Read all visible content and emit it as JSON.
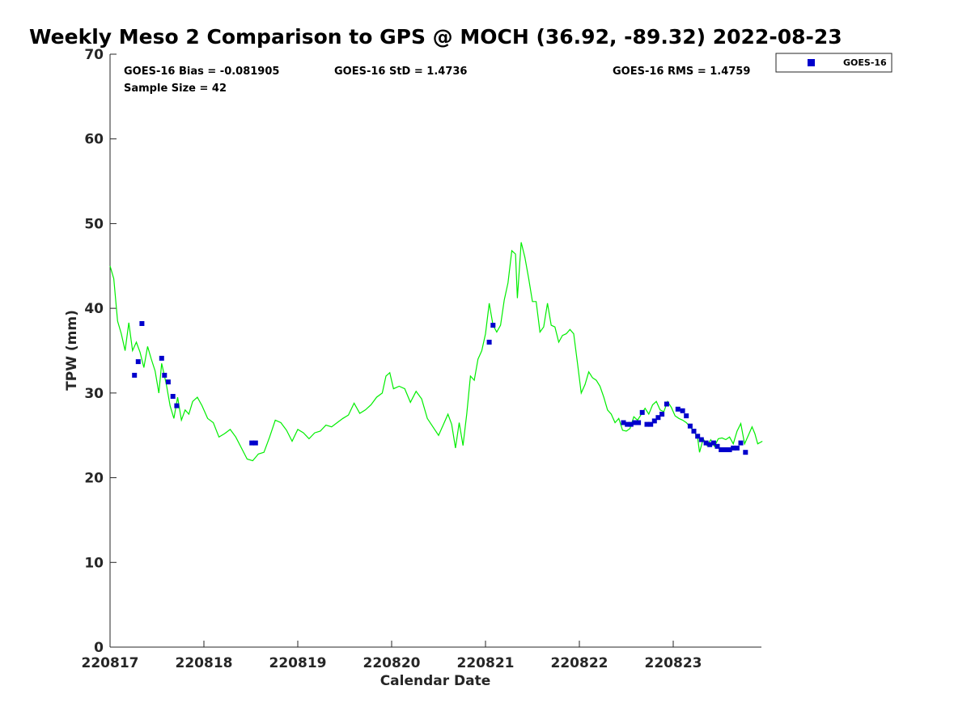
{
  "chart_data": {
    "type": "scatter",
    "title": "Weekly Meso 2 Comparison to GPS @ MOCH (36.92, -89.32) 2022-08-23",
    "xlabel": "Calendar Date",
    "ylabel": "TPW (mm)",
    "xlim": [
      0,
      6.95
    ],
    "ylim": [
      0,
      70
    ],
    "x_tick_labels": [
      "220817",
      "220818",
      "220819",
      "220820",
      "220821",
      "220822",
      "220823"
    ],
    "y_ticks": [
      0,
      10,
      20,
      30,
      40,
      50,
      60,
      70
    ],
    "grid": false,
    "legend_position": "top-right",
    "stats": {
      "bias": "GOES-16 Bias = -0.081905",
      "std": "GOES-16 StD = 1.4736",
      "rms": "GOES-16 RMS = 1.4759",
      "sample": "Sample Size = 42"
    },
    "series": [
      {
        "name": "GOES-16",
        "color": "#0000cc",
        "marker": "square",
        "points": [
          [
            0.26,
            32.1
          ],
          [
            0.3,
            33.7
          ],
          [
            0.34,
            38.2
          ],
          [
            0.55,
            34.1
          ],
          [
            0.58,
            32.1
          ],
          [
            0.62,
            31.3
          ],
          [
            0.67,
            29.6
          ],
          [
            0.71,
            28.5
          ],
          [
            1.51,
            24.1
          ],
          [
            1.55,
            24.1
          ],
          [
            4.04,
            36.0
          ],
          [
            4.08,
            38.0
          ],
          [
            5.47,
            26.5
          ],
          [
            5.51,
            26.3
          ],
          [
            5.55,
            26.3
          ],
          [
            5.59,
            26.5
          ],
          [
            5.63,
            26.5
          ],
          [
            5.67,
            27.7
          ],
          [
            5.72,
            26.3
          ],
          [
            5.76,
            26.3
          ],
          [
            5.8,
            26.7
          ],
          [
            5.84,
            27.1
          ],
          [
            5.88,
            27.5
          ],
          [
            5.93,
            28.7
          ],
          [
            6.05,
            28.1
          ],
          [
            6.1,
            27.9
          ],
          [
            6.14,
            27.3
          ],
          [
            6.18,
            26.1
          ],
          [
            6.22,
            25.5
          ],
          [
            6.26,
            24.9
          ],
          [
            6.3,
            24.5
          ],
          [
            6.35,
            24.1
          ],
          [
            6.39,
            23.9
          ],
          [
            6.43,
            24.1
          ],
          [
            6.47,
            23.7
          ],
          [
            6.51,
            23.3
          ],
          [
            6.56,
            23.3
          ],
          [
            6.6,
            23.3
          ],
          [
            6.64,
            23.5
          ],
          [
            6.68,
            23.5
          ],
          [
            6.72,
            24.1
          ],
          [
            6.77,
            23.0
          ]
        ]
      },
      {
        "name": "",
        "color": "#00ee00",
        "marker": "line",
        "points": [
          [
            0.0,
            45.0
          ],
          [
            0.04,
            43.5
          ],
          [
            0.08,
            38.5
          ],
          [
            0.12,
            37.0
          ],
          [
            0.16,
            35.0
          ],
          [
            0.2,
            38.3
          ],
          [
            0.24,
            35.0
          ],
          [
            0.28,
            36.0
          ],
          [
            0.32,
            34.8
          ],
          [
            0.36,
            33.0
          ],
          [
            0.4,
            35.5
          ],
          [
            0.44,
            34.0
          ],
          [
            0.48,
            32.6
          ],
          [
            0.52,
            30.0
          ],
          [
            0.55,
            33.5
          ],
          [
            0.6,
            31.0
          ],
          [
            0.64,
            28.5
          ],
          [
            0.68,
            27.0
          ],
          [
            0.72,
            29.5
          ],
          [
            0.76,
            26.8
          ],
          [
            0.8,
            28.0
          ],
          [
            0.84,
            27.5
          ],
          [
            0.88,
            29.0
          ],
          [
            0.93,
            29.5
          ],
          [
            0.98,
            28.5
          ],
          [
            1.04,
            27.0
          ],
          [
            1.1,
            26.5
          ],
          [
            1.16,
            24.8
          ],
          [
            1.22,
            25.2
          ],
          [
            1.28,
            25.7
          ],
          [
            1.34,
            24.8
          ],
          [
            1.4,
            23.5
          ],
          [
            1.46,
            22.2
          ],
          [
            1.52,
            22.0
          ],
          [
            1.58,
            22.8
          ],
          [
            1.64,
            23.0
          ],
          [
            1.7,
            24.8
          ],
          [
            1.76,
            26.8
          ],
          [
            1.82,
            26.5
          ],
          [
            1.88,
            25.6
          ],
          [
            1.94,
            24.3
          ],
          [
            2.0,
            25.7
          ],
          [
            2.06,
            25.3
          ],
          [
            2.12,
            24.6
          ],
          [
            2.18,
            25.3
          ],
          [
            2.24,
            25.5
          ],
          [
            2.3,
            26.2
          ],
          [
            2.36,
            26.0
          ],
          [
            2.42,
            26.5
          ],
          [
            2.48,
            27.0
          ],
          [
            2.54,
            27.4
          ],
          [
            2.6,
            28.8
          ],
          [
            2.66,
            27.6
          ],
          [
            2.72,
            28.0
          ],
          [
            2.78,
            28.6
          ],
          [
            2.84,
            29.5
          ],
          [
            2.9,
            30.0
          ],
          [
            2.94,
            32.0
          ],
          [
            2.98,
            32.4
          ],
          [
            3.02,
            30.5
          ],
          [
            3.08,
            30.8
          ],
          [
            3.14,
            30.5
          ],
          [
            3.2,
            28.9
          ],
          [
            3.26,
            30.2
          ],
          [
            3.32,
            29.3
          ],
          [
            3.38,
            27.0
          ],
          [
            3.44,
            26.0
          ],
          [
            3.5,
            25.0
          ],
          [
            3.56,
            26.5
          ],
          [
            3.6,
            27.5
          ],
          [
            3.64,
            26.3
          ],
          [
            3.68,
            23.5
          ],
          [
            3.72,
            26.5
          ],
          [
            3.76,
            23.8
          ],
          [
            3.8,
            27.5
          ],
          [
            3.84,
            32.0
          ],
          [
            3.88,
            31.5
          ],
          [
            3.92,
            34.0
          ],
          [
            3.96,
            35.0
          ],
          [
            4.0,
            37.0
          ],
          [
            4.04,
            40.6
          ],
          [
            4.08,
            38.0
          ],
          [
            4.12,
            37.2
          ],
          [
            4.16,
            38.0
          ],
          [
            4.2,
            41.0
          ],
          [
            4.24,
            43.0
          ],
          [
            4.28,
            46.8
          ],
          [
            4.32,
            46.4
          ],
          [
            4.34,
            41.2
          ],
          [
            4.38,
            47.8
          ],
          [
            4.42,
            46.0
          ],
          [
            4.46,
            43.5
          ],
          [
            4.5,
            40.8
          ],
          [
            4.54,
            40.8
          ],
          [
            4.58,
            37.2
          ],
          [
            4.62,
            37.8
          ],
          [
            4.66,
            40.6
          ],
          [
            4.7,
            38.0
          ],
          [
            4.74,
            37.8
          ],
          [
            4.78,
            36.0
          ],
          [
            4.82,
            36.8
          ],
          [
            4.86,
            37.0
          ],
          [
            4.9,
            37.5
          ],
          [
            4.94,
            37.0
          ],
          [
            4.98,
            33.5
          ],
          [
            5.02,
            30.0
          ],
          [
            5.06,
            31.0
          ],
          [
            5.1,
            32.5
          ],
          [
            5.14,
            31.8
          ],
          [
            5.18,
            31.5
          ],
          [
            5.22,
            30.8
          ],
          [
            5.26,
            29.5
          ],
          [
            5.3,
            28.0
          ],
          [
            5.34,
            27.5
          ],
          [
            5.38,
            26.5
          ],
          [
            5.42,
            27.0
          ],
          [
            5.46,
            25.6
          ],
          [
            5.5,
            25.5
          ],
          [
            5.54,
            25.8
          ],
          [
            5.58,
            27.2
          ],
          [
            5.62,
            26.8
          ],
          [
            5.66,
            27.5
          ],
          [
            5.7,
            28.2
          ],
          [
            5.74,
            27.5
          ],
          [
            5.78,
            28.6
          ],
          [
            5.82,
            29.0
          ],
          [
            5.86,
            28.0
          ],
          [
            5.9,
            27.8
          ],
          [
            5.94,
            29.0
          ],
          [
            5.98,
            28.3
          ],
          [
            6.02,
            27.3
          ],
          [
            6.06,
            27.0
          ],
          [
            6.1,
            26.8
          ],
          [
            6.14,
            26.5
          ],
          [
            6.18,
            26.0
          ],
          [
            6.22,
            25.5
          ],
          [
            6.26,
            24.7
          ],
          [
            6.28,
            23.0
          ],
          [
            6.32,
            24.6
          ],
          [
            6.36,
            23.8
          ],
          [
            6.4,
            24.5
          ],
          [
            6.44,
            23.7
          ],
          [
            6.48,
            24.6
          ],
          [
            6.52,
            24.7
          ],
          [
            6.56,
            24.5
          ],
          [
            6.6,
            24.8
          ],
          [
            6.64,
            24.0
          ],
          [
            6.68,
            25.5
          ],
          [
            6.72,
            26.4
          ],
          [
            6.76,
            24.0
          ],
          [
            6.8,
            25.0
          ],
          [
            6.84,
            26.0
          ],
          [
            6.87,
            25.2
          ],
          [
            6.9,
            24.0
          ],
          [
            6.95,
            24.3
          ]
        ]
      }
    ]
  }
}
